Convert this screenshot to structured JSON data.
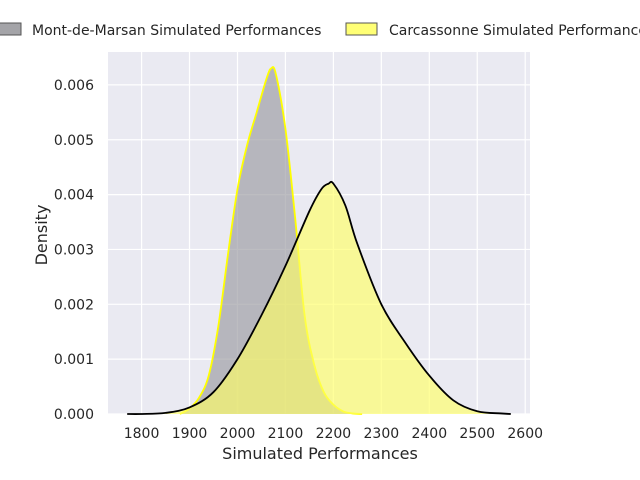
{
  "chart_data": {
    "type": "area",
    "xlabel": "Simulated Performances",
    "ylabel": "Density",
    "xlim": [
      1730,
      2610
    ],
    "ylim": [
      0,
      0.0066
    ],
    "x_ticks": [
      1800,
      1900,
      2000,
      2100,
      2200,
      2300,
      2400,
      2500,
      2600
    ],
    "y_ticks": [
      0.0,
      0.001,
      0.002,
      0.003,
      0.004,
      0.005,
      0.006
    ],
    "y_tick_labels": [
      "0.000",
      "0.001",
      "0.002",
      "0.003",
      "0.004",
      "0.005",
      "0.006"
    ],
    "grid": true,
    "legend_position": "top",
    "series": [
      {
        "name": "Mont-de-Marsan Simulated Performances",
        "fill": "#9a9a9f",
        "line": "#ffff00",
        "x": [
          1880,
          1900,
          1920,
          1940,
          1960,
          1980,
          2000,
          2020,
          2040,
          2060,
          2070,
          2080,
          2100,
          2120,
          2140,
          2160,
          2180,
          2200,
          2220,
          2240,
          2260
        ],
        "y": [
          0.0,
          0.0001,
          0.0003,
          0.0007,
          0.0016,
          0.0029,
          0.0041,
          0.0049,
          0.0055,
          0.0061,
          0.0063,
          0.0062,
          0.0052,
          0.0036,
          0.0018,
          0.0009,
          0.0004,
          0.00017,
          5e-05,
          1e-05,
          0.0
        ]
      },
      {
        "name": "Carcassonne Simulated Performances",
        "fill": "#ffff66",
        "line": "#000000",
        "x": [
          1770,
          1800,
          1850,
          1900,
          1950,
          2000,
          2050,
          2100,
          2150,
          2175,
          2190,
          2200,
          2225,
          2250,
          2300,
          2350,
          2400,
          2450,
          2500,
          2550,
          2570
        ],
        "y": [
          0.0,
          0.0,
          2e-05,
          0.00012,
          0.0004,
          0.001,
          0.0018,
          0.0027,
          0.0037,
          0.0041,
          0.0042,
          0.0042,
          0.0038,
          0.0031,
          0.002,
          0.0013,
          0.0007,
          0.00025,
          5e-05,
          1e-05,
          0.0
        ]
      }
    ]
  }
}
